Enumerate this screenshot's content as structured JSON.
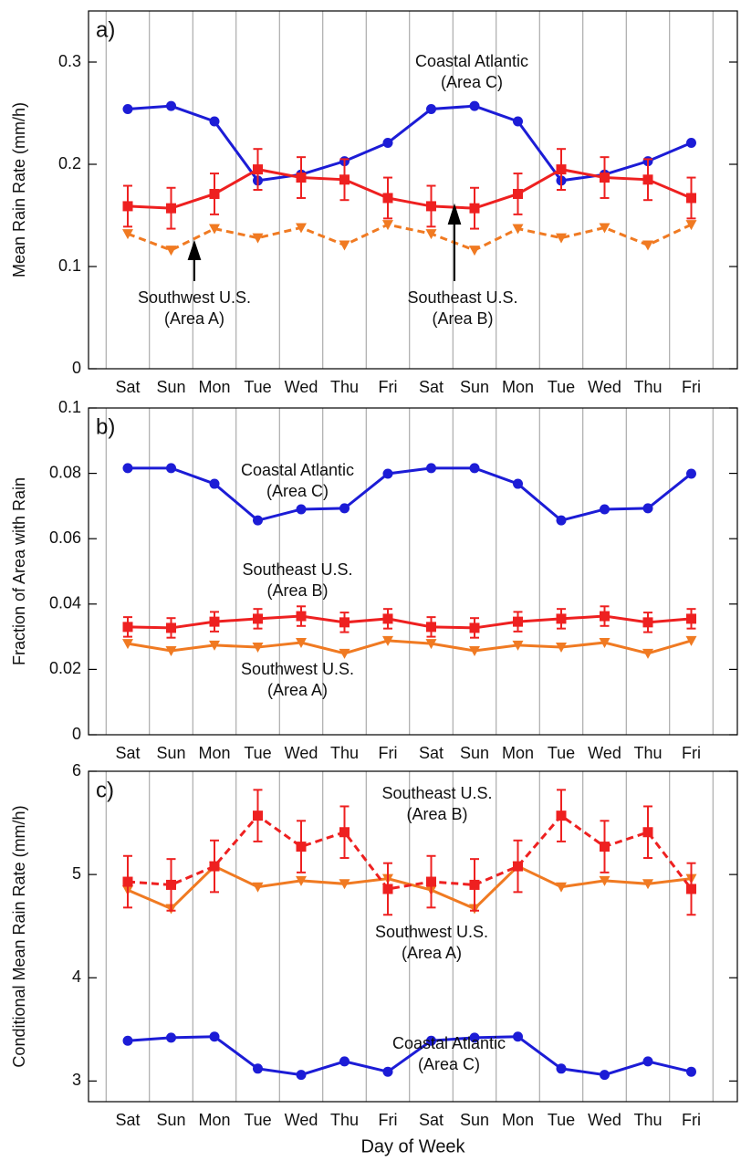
{
  "chart_data": [
    {
      "type": "line",
      "panel_label": "a)",
      "ylabel": "Mean Rain Rate  (mm/h)",
      "categories": [
        "Sat",
        "Sun",
        "Mon",
        "Tue",
        "Wed",
        "Thu",
        "Fri",
        "Sat",
        "Sun",
        "Mon",
        "Tue",
        "Wed",
        "Thu",
        "Fri"
      ],
      "ylim": [
        0,
        0.35
      ],
      "yticks": [
        0,
        0.1,
        0.2,
        0.3
      ],
      "grid": true,
      "series": [
        {
          "color": "#1c1cd6",
          "marker": "circle",
          "dashed": false,
          "values": [
            0.254,
            0.257,
            0.242,
            0.184,
            0.19,
            0.203,
            0.221,
            0.254,
            0.257,
            0.242,
            0.184,
            0.19,
            0.203,
            0.221
          ]
        },
        {
          "color": "#ee2020",
          "marker": "square",
          "dashed": false,
          "values": [
            0.159,
            0.157,
            0.171,
            0.195,
            0.187,
            0.185,
            0.167,
            0.159,
            0.157,
            0.171,
            0.195,
            0.187,
            0.185,
            0.167
          ],
          "errors": [
            0.02,
            0.02,
            0.02,
            0.02,
            0.02,
            0.02,
            0.02,
            0.02,
            0.02,
            0.02,
            0.02,
            0.02,
            0.02,
            0.02
          ]
        },
        {
          "color": "#f07a22",
          "marker": "triangle-down",
          "dashed": true,
          "values": [
            0.132,
            0.116,
            0.137,
            0.128,
            0.138,
            0.121,
            0.141,
            0.132,
            0.116,
            0.137,
            0.128,
            0.138,
            0.121,
            0.141
          ]
        }
      ],
      "annotations": [
        [
          "Coastal Atlantic",
          "(Area C)"
        ],
        [
          "Southwest U.S.",
          "(Area A)"
        ],
        [
          "Southeast U.S.",
          "(Area B)"
        ]
      ]
    },
    {
      "type": "line",
      "panel_label": "b)",
      "ylabel": "Fraction of Area with Rain",
      "categories": [
        "Sat",
        "Sun",
        "Mon",
        "Tue",
        "Wed",
        "Thu",
        "Fri",
        "Sat",
        "Sun",
        "Mon",
        "Tue",
        "Wed",
        "Thu",
        "Fri"
      ],
      "ylim": [
        0,
        0.1
      ],
      "yticks": [
        0,
        0.02,
        0.04,
        0.06,
        0.08,
        0.1
      ],
      "grid": true,
      "series": [
        {
          "color": "#1c1cd6",
          "marker": "circle",
          "dashed": false,
          "values": [
            0.0816,
            0.0816,
            0.0768,
            0.0656,
            0.069,
            0.0693,
            0.0799,
            0.0816,
            0.0816,
            0.0768,
            0.0656,
            0.069,
            0.0693,
            0.0799
          ]
        },
        {
          "color": "#ee2020",
          "marker": "square",
          "dashed": false,
          "values": [
            0.033,
            0.0327,
            0.0346,
            0.0355,
            0.0363,
            0.0344,
            0.0355,
            0.033,
            0.0327,
            0.0346,
            0.0355,
            0.0363,
            0.0344,
            0.0355
          ],
          "errors": [
            0.003,
            0.003,
            0.003,
            0.003,
            0.003,
            0.003,
            0.003,
            0.003,
            0.003,
            0.003,
            0.003,
            0.003,
            0.003,
            0.003
          ]
        },
        {
          "color": "#f07a22",
          "marker": "triangle-down",
          "dashed": false,
          "values": [
            0.0279,
            0.0257,
            0.0274,
            0.0268,
            0.0282,
            0.0249,
            0.0288,
            0.0279,
            0.0257,
            0.0274,
            0.0268,
            0.0282,
            0.0249,
            0.0288
          ]
        }
      ],
      "annotations": [
        [
          "Coastal Atlantic",
          "(Area C)"
        ],
        [
          "Southeast U.S.",
          "(Area B)"
        ],
        [
          "Southwest U.S.",
          "(Area A)"
        ]
      ]
    },
    {
      "type": "line",
      "panel_label": "c)",
      "ylabel": "Conditional Mean Rain Rate  (mm/h)",
      "xlabel": "Day of Week",
      "categories": [
        "Sat",
        "Sun",
        "Mon",
        "Tue",
        "Wed",
        "Thu",
        "Fri",
        "Sat",
        "Sun",
        "Mon",
        "Tue",
        "Wed",
        "Thu",
        "Fri"
      ],
      "ylim": [
        2.8,
        6
      ],
      "yticks": [
        3,
        4,
        5,
        6
      ],
      "grid": true,
      "series": [
        {
          "color": "#1c1cd6",
          "marker": "circle",
          "dashed": false,
          "values": [
            3.39,
            3.42,
            3.43,
            3.12,
            3.06,
            3.19,
            3.09,
            3.39,
            3.42,
            3.43,
            3.12,
            3.06,
            3.19,
            3.09
          ]
        },
        {
          "color": "#f07a22",
          "marker": "triangle-down",
          "dashed": false,
          "values": [
            4.85,
            4.67,
            5.08,
            4.88,
            4.94,
            4.91,
            4.96,
            4.85,
            4.67,
            5.08,
            4.88,
            4.94,
            4.91,
            4.96
          ]
        },
        {
          "color": "#ee2020",
          "marker": "square",
          "dashed": true,
          "values": [
            4.93,
            4.9,
            5.08,
            5.57,
            5.27,
            5.41,
            4.86,
            4.93,
            4.9,
            5.08,
            5.57,
            5.27,
            5.41,
            4.86
          ],
          "errors": [
            0.25,
            0.25,
            0.25,
            0.25,
            0.25,
            0.25,
            0.25,
            0.25,
            0.25,
            0.25,
            0.25,
            0.25,
            0.25,
            0.25
          ]
        }
      ],
      "annotations": [
        [
          "Southeast U.S.",
          "(Area B)"
        ],
        [
          "Southwest U.S.",
          "(Area A)"
        ],
        [
          "Coastal Atlantic",
          "(Area C)"
        ]
      ]
    }
  ]
}
